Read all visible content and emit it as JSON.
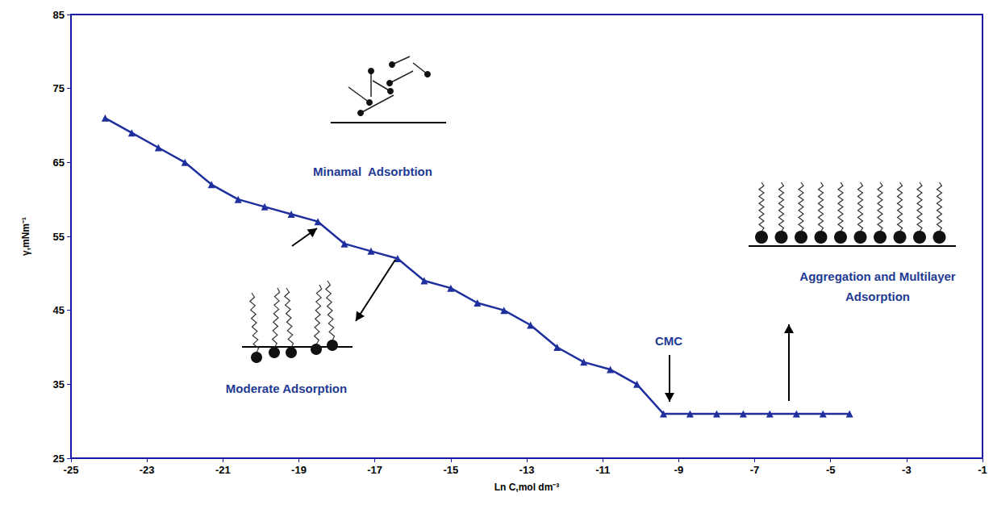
{
  "chart_data": {
    "type": "line",
    "x_label": "Ln C,mol dm⁻³",
    "y_label": "γ,mNm⁻¹",
    "x": [
      -24.1,
      -23.4,
      -22.7,
      -22.0,
      -21.3,
      -20.6,
      -19.9,
      -19.2,
      -18.5,
      -17.8,
      -17.1,
      -16.4,
      -15.7,
      -15.0,
      -14.3,
      -13.6,
      -12.9,
      -12.2,
      -11.5,
      -10.8,
      -10.1,
      -9.4,
      -8.7,
      -8.0,
      -7.3,
      -6.6,
      -5.9,
      -5.2,
      -4.5
    ],
    "values": [
      71,
      69,
      67,
      65,
      62,
      60,
      59,
      58,
      57,
      54,
      53,
      52,
      49,
      48,
      46,
      45,
      43,
      40,
      38,
      37,
      35,
      31,
      31,
      31,
      31,
      31,
      31,
      31,
      31
    ],
    "color": "#1f2f9e",
    "marker": "triangle",
    "xlim": [
      -25,
      -1
    ],
    "xticks": [
      -25,
      -23,
      -21,
      -19,
      -17,
      -15,
      -13,
      -11,
      -9,
      -7,
      -5,
      -3,
      -1
    ],
    "ylim": [
      25,
      85
    ],
    "yticks": [
      25,
      35,
      45,
      55,
      65,
      75,
      85
    ],
    "grid": false,
    "annotations": [
      "Minamal  Adsorbtion",
      "Moderate Adsorption",
      "CMC",
      "Aggregation and Multilayer Adsorption"
    ]
  }
}
